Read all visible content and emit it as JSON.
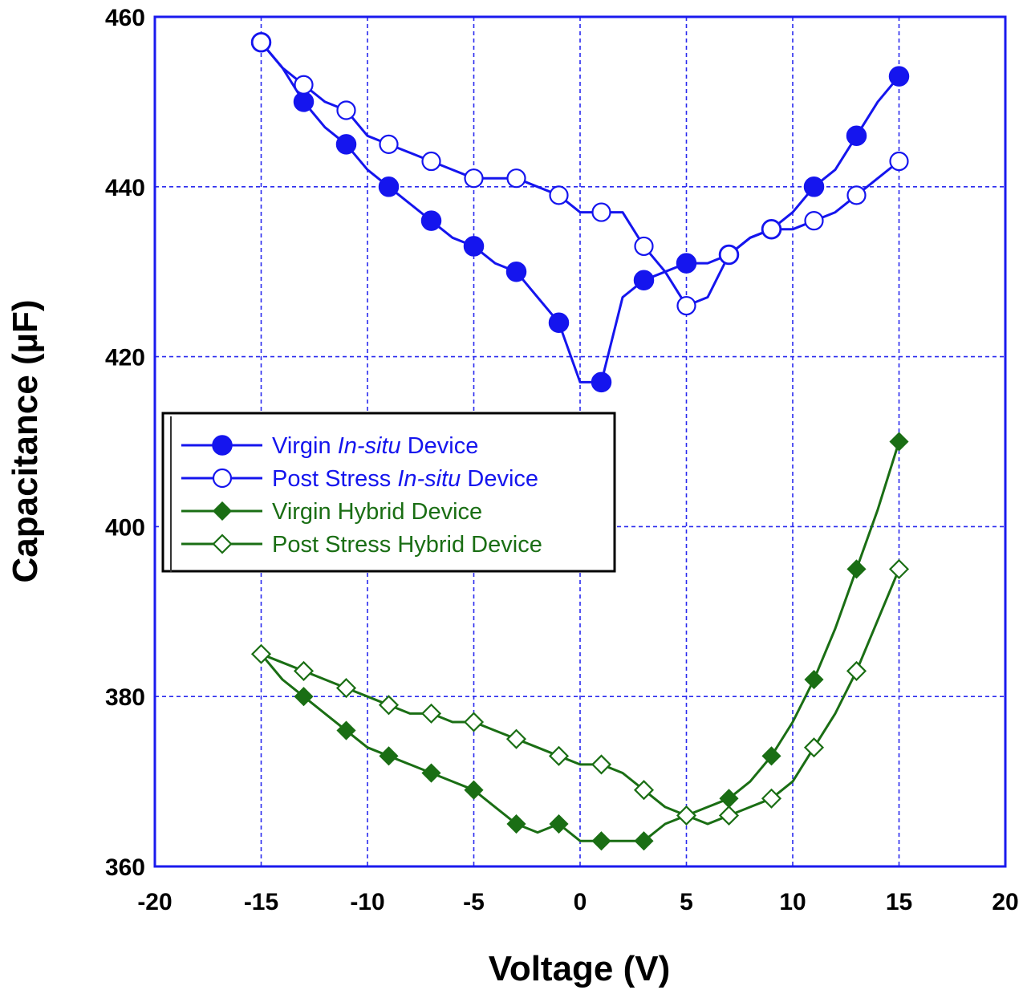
{
  "chart_data": {
    "type": "line",
    "title": "",
    "xlabel": "Voltage (V)",
    "ylabel": "Capacitance (µF)",
    "xlim": [
      -20,
      20
    ],
    "ylim": [
      360,
      460
    ],
    "xticks": [
      -20,
      -15,
      -10,
      -5,
      0,
      5,
      10,
      15,
      20
    ],
    "yticks": [
      360,
      380,
      400,
      420,
      440,
      460
    ],
    "xtick_labels": [
      "-20",
      "-15",
      "-10",
      "-5",
      "0",
      "5",
      "10",
      "15",
      "20"
    ],
    "ytick_labels": [
      "360",
      "380",
      "400",
      "420",
      "440",
      "460"
    ],
    "grid": true,
    "legend_position": "left-middle",
    "series": [
      {
        "name": "Virgin In-situ Device",
        "legend_parts": [
          {
            "text": "Virgin ",
            "italic": false
          },
          {
            "text": "In-situ",
            "italic": true
          },
          {
            "text": " Device",
            "italic": false
          }
        ],
        "color": "#1515ee",
        "marker": "filled-circle",
        "x": [
          -15,
          -13,
          -11,
          -9,
          -7,
          -5,
          -3,
          -1,
          1,
          3,
          5,
          7,
          9,
          11,
          13,
          15
        ],
        "y": [
          457,
          450,
          445,
          440,
          436,
          433,
          430,
          424,
          417,
          429,
          431,
          432,
          435,
          440,
          446,
          453
        ],
        "line_x": [
          -15,
          -14,
          -13,
          -12,
          -11,
          -10,
          -9,
          -8,
          -7,
          -6,
          -5,
          -4,
          -3,
          -2,
          -1,
          0,
          1,
          2,
          3,
          4,
          5,
          6,
          7,
          8,
          9,
          10,
          11,
          12,
          13,
          14,
          15
        ],
        "line_y": [
          457,
          454,
          450,
          447,
          445,
          442,
          440,
          438,
          436,
          434,
          433,
          431,
          430,
          427,
          424,
          417,
          417,
          427,
          429,
          430,
          431,
          431,
          432,
          434,
          435,
          437,
          440,
          442,
          446,
          450,
          453
        ]
      },
      {
        "name": "Post Stress In-situ Device",
        "legend_parts": [
          {
            "text": "Post Stress ",
            "italic": false
          },
          {
            "text": "In-situ",
            "italic": true
          },
          {
            "text": " Device",
            "italic": false
          }
        ],
        "color": "#1515ee",
        "marker": "open-circle",
        "x": [
          -15,
          -13,
          -11,
          -9,
          -7,
          -5,
          -3,
          -1,
          1,
          3,
          5,
          7,
          9,
          11,
          13,
          15
        ],
        "y": [
          457,
          452,
          449,
          445,
          443,
          441,
          441,
          439,
          437,
          433,
          426,
          432,
          435,
          436,
          439,
          443
        ],
        "line_x": [
          -15,
          -14,
          -13,
          -12,
          -11,
          -10,
          -9,
          -8,
          -7,
          -6,
          -5,
          -4,
          -3,
          -2,
          -1,
          0,
          1,
          2,
          3,
          4,
          5,
          6,
          7,
          8,
          9,
          10,
          11,
          12,
          13,
          14,
          15
        ],
        "line_y": [
          457,
          454,
          452,
          450,
          449,
          446,
          445,
          444,
          443,
          442,
          441,
          441,
          441,
          440,
          439,
          437,
          437,
          437,
          433,
          430,
          426,
          427,
          432,
          434,
          435,
          435,
          436,
          437,
          439,
          441,
          443
        ]
      },
      {
        "name": "Virgin Hybrid Device",
        "legend_parts": [
          {
            "text": "Virgin Hybrid Device",
            "italic": false
          }
        ],
        "color": "#1a6e14",
        "marker": "filled-diamond",
        "x": [
          -15,
          -13,
          -11,
          -9,
          -7,
          -5,
          -3,
          -1,
          1,
          3,
          5,
          7,
          9,
          11,
          13,
          15
        ],
        "y": [
          385,
          380,
          376,
          373,
          371,
          369,
          365,
          365,
          363,
          363,
          366,
          368,
          373,
          382,
          395,
          410
        ],
        "line_x": [
          -15,
          -14,
          -13,
          -12,
          -11,
          -10,
          -9,
          -8,
          -7,
          -6,
          -5,
          -4,
          -3,
          -2,
          -1,
          0,
          1,
          2,
          3,
          4,
          5,
          6,
          7,
          8,
          9,
          10,
          11,
          12,
          13,
          14,
          15
        ],
        "line_y": [
          385,
          382,
          380,
          378,
          376,
          374,
          373,
          372,
          371,
          370,
          369,
          367,
          365,
          364,
          365,
          363,
          363,
          363,
          363,
          365,
          366,
          367,
          368,
          370,
          373,
          377,
          382,
          388,
          395,
          402,
          410
        ]
      },
      {
        "name": "Post Stress Hybrid Device",
        "legend_parts": [
          {
            "text": "Post Stress Hybrid Device",
            "italic": false
          }
        ],
        "color": "#1a6e14",
        "marker": "open-diamond",
        "x": [
          -15,
          -13,
          -11,
          -9,
          -7,
          -5,
          -3,
          -1,
          1,
          3,
          5,
          7,
          9,
          11,
          13,
          15
        ],
        "y": [
          385,
          383,
          381,
          379,
          378,
          377,
          375,
          373,
          372,
          369,
          366,
          366,
          368,
          374,
          383,
          395
        ],
        "line_x": [
          -15,
          -14,
          -13,
          -12,
          -11,
          -10,
          -9,
          -8,
          -7,
          -6,
          -5,
          -4,
          -3,
          -2,
          -1,
          0,
          1,
          2,
          3,
          4,
          5,
          6,
          7,
          8,
          9,
          10,
          11,
          12,
          13,
          14,
          15
        ],
        "line_y": [
          385,
          384,
          383,
          382,
          381,
          380,
          379,
          378,
          378,
          377,
          377,
          376,
          375,
          374,
          373,
          372,
          372,
          371,
          369,
          367,
          366,
          365,
          366,
          367,
          368,
          370,
          374,
          378,
          383,
          389,
          395
        ]
      }
    ]
  }
}
